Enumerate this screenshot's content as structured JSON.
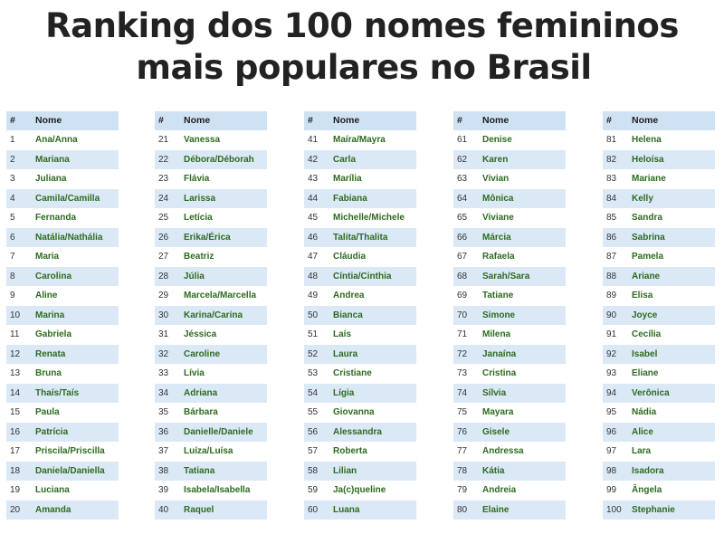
{
  "title": {
    "line1": "Ranking dos 100 nomes femininos",
    "line2": "mais populares no Brasil"
  },
  "table": {
    "header_rank": "#",
    "header_name": "Nome",
    "columns": [
      [
        {
          "rank": "1",
          "name": "Ana/Anna"
        },
        {
          "rank": "2",
          "name": "Mariana"
        },
        {
          "rank": "3",
          "name": "Juliana"
        },
        {
          "rank": "4",
          "name": "Camila/Camilla"
        },
        {
          "rank": "5",
          "name": "Fernanda"
        },
        {
          "rank": "6",
          "name": "Natália/Nathália"
        },
        {
          "rank": "7",
          "name": "Maria"
        },
        {
          "rank": "8",
          "name": "Carolina"
        },
        {
          "rank": "9",
          "name": "Aline"
        },
        {
          "rank": "10",
          "name": "Marina"
        },
        {
          "rank": "11",
          "name": "Gabriela"
        },
        {
          "rank": "12",
          "name": "Renata"
        },
        {
          "rank": "13",
          "name": "Bruna"
        },
        {
          "rank": "14",
          "name": "Thaís/Taís"
        },
        {
          "rank": "15",
          "name": "Paula"
        },
        {
          "rank": "16",
          "name": "Patrícia"
        },
        {
          "rank": "17",
          "name": "Priscila/Priscilla"
        },
        {
          "rank": "18",
          "name": "Daniela/Daniella"
        },
        {
          "rank": "19",
          "name": "Luciana"
        },
        {
          "rank": "20",
          "name": "Amanda"
        }
      ],
      [
        {
          "rank": "21",
          "name": "Vanessa"
        },
        {
          "rank": "22",
          "name": "Débora/Déborah"
        },
        {
          "rank": "23",
          "name": "Flávia"
        },
        {
          "rank": "24",
          "name": "Larissa"
        },
        {
          "rank": "25",
          "name": "Letícia"
        },
        {
          "rank": "26",
          "name": "Erika/Érica"
        },
        {
          "rank": "27",
          "name": "Beatriz"
        },
        {
          "rank": "28",
          "name": "Júlia"
        },
        {
          "rank": "29",
          "name": "Marcela/Marcella"
        },
        {
          "rank": "30",
          "name": "Karina/Carina"
        },
        {
          "rank": "31",
          "name": "Jéssica"
        },
        {
          "rank": "32",
          "name": "Caroline"
        },
        {
          "rank": "33",
          "name": "Lívia"
        },
        {
          "rank": "34",
          "name": "Adriana"
        },
        {
          "rank": "35",
          "name": "Bárbara"
        },
        {
          "rank": "36",
          "name": "Danielle/Daniele"
        },
        {
          "rank": "37",
          "name": "Luíza/Luísa"
        },
        {
          "rank": "38",
          "name": "Tatiana"
        },
        {
          "rank": "39",
          "name": "Isabela/Isabella"
        },
        {
          "rank": "40",
          "name": "Raquel"
        }
      ],
      [
        {
          "rank": "41",
          "name": "Maíra/Mayra"
        },
        {
          "rank": "42",
          "name": "Carla"
        },
        {
          "rank": "43",
          "name": "Marília"
        },
        {
          "rank": "44",
          "name": "Fabiana"
        },
        {
          "rank": "45",
          "name": "Michelle/Michele"
        },
        {
          "rank": "46",
          "name": "Talita/Thalita"
        },
        {
          "rank": "47",
          "name": "Cláudia"
        },
        {
          "rank": "48",
          "name": "Cíntia/Cinthia"
        },
        {
          "rank": "49",
          "name": "Andrea"
        },
        {
          "rank": "50",
          "name": "Bianca"
        },
        {
          "rank": "51",
          "name": "Laís"
        },
        {
          "rank": "52",
          "name": "Laura"
        },
        {
          "rank": "53",
          "name": "Cristiane"
        },
        {
          "rank": "54",
          "name": "Lígia"
        },
        {
          "rank": "55",
          "name": "Giovanna"
        },
        {
          "rank": "56",
          "name": "Alessandra"
        },
        {
          "rank": "57",
          "name": "Roberta"
        },
        {
          "rank": "58",
          "name": "Lilian"
        },
        {
          "rank": "59",
          "name": "Ja(c)queline"
        },
        {
          "rank": "60",
          "name": "Luana"
        }
      ],
      [
        {
          "rank": "61",
          "name": "Denise"
        },
        {
          "rank": "62",
          "name": "Karen"
        },
        {
          "rank": "63",
          "name": "Vivian"
        },
        {
          "rank": "64",
          "name": "Mônica"
        },
        {
          "rank": "65",
          "name": "Viviane"
        },
        {
          "rank": "66",
          "name": "Márcia"
        },
        {
          "rank": "67",
          "name": "Rafaela"
        },
        {
          "rank": "68",
          "name": "Sarah/Sara"
        },
        {
          "rank": "69",
          "name": "Tatiane"
        },
        {
          "rank": "70",
          "name": "Simone"
        },
        {
          "rank": "71",
          "name": "Milena"
        },
        {
          "rank": "72",
          "name": "Janaína"
        },
        {
          "rank": "73",
          "name": "Cristina"
        },
        {
          "rank": "74",
          "name": "Sílvia"
        },
        {
          "rank": "75",
          "name": "Mayara"
        },
        {
          "rank": "76",
          "name": "Gisele"
        },
        {
          "rank": "77",
          "name": "Andressa"
        },
        {
          "rank": "78",
          "name": "Kátia"
        },
        {
          "rank": "79",
          "name": "Andreia"
        },
        {
          "rank": "80",
          "name": "Elaine"
        }
      ],
      [
        {
          "rank": "81",
          "name": "Helena"
        },
        {
          "rank": "82",
          "name": "Heloísa"
        },
        {
          "rank": "83",
          "name": "Mariane"
        },
        {
          "rank": "84",
          "name": "Kelly"
        },
        {
          "rank": "85",
          "name": "Sandra"
        },
        {
          "rank": "86",
          "name": "Sabrina"
        },
        {
          "rank": "87",
          "name": "Pamela"
        },
        {
          "rank": "88",
          "name": "Ariane"
        },
        {
          "rank": "89",
          "name": "Elisa"
        },
        {
          "rank": "90",
          "name": "Joyce"
        },
        {
          "rank": "91",
          "name": "Cecília"
        },
        {
          "rank": "92",
          "name": "Isabel"
        },
        {
          "rank": "93",
          "name": "Eliane"
        },
        {
          "rank": "94",
          "name": "Verônica"
        },
        {
          "rank": "95",
          "name": "Nádia"
        },
        {
          "rank": "96",
          "name": "Alice"
        },
        {
          "rank": "97",
          "name": "Lara"
        },
        {
          "rank": "98",
          "name": "Isadora"
        },
        {
          "rank": "99",
          "name": "Ângela"
        },
        {
          "rank": "100",
          "name": "Stephanie"
        }
      ]
    ]
  }
}
